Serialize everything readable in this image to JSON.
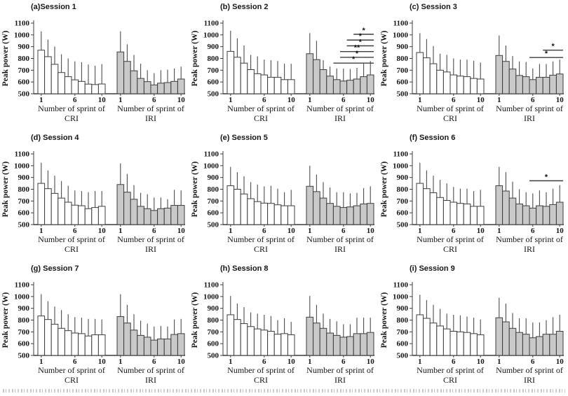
{
  "style": {
    "background": "#ffffff",
    "bar_fill_cri": "#ffffff",
    "bar_fill_iri": "#c9c9c9",
    "bar_stroke": "#3c3c3c",
    "error_bar_color": "#4c4c4c",
    "axis_color": "#3c3c3c",
    "text_color": "#161616"
  },
  "chart_data": [
    {
      "type": "bar",
      "id": "a",
      "title": "(a)Session 1",
      "ylabel": "Peak power (W)",
      "ylim": [
        500,
        1100
      ],
      "yticks": [
        500,
        600,
        700,
        800,
        900,
        1000,
        1100
      ],
      "xtick_labels": [
        1,
        6,
        10
      ],
      "xlabel_prefix": "Number of sprint of",
      "groups": [
        {
          "name": "CRI",
          "fill": "#ffffff",
          "values": [
            870,
            815,
            750,
            680,
            645,
            618,
            605,
            582,
            578,
            583
          ],
          "error_top": [
            1030,
            960,
            900,
            835,
            800,
            775,
            768,
            748,
            738,
            752
          ]
        },
        {
          "name": "IRI",
          "fill": "#c9c9c9",
          "values": [
            855,
            775,
            695,
            630,
            603,
            575,
            590,
            595,
            605,
            625
          ],
          "error_top": [
            1030,
            920,
            830,
            755,
            700,
            675,
            700,
            705,
            715,
            730
          ]
        }
      ],
      "significance": []
    },
    {
      "type": "bar",
      "id": "b",
      "title": "(b) Session 2",
      "ylabel": "Peak power (W)",
      "ylim": [
        500,
        1100
      ],
      "yticks": [
        500,
        600,
        700,
        800,
        900,
        1000,
        1100
      ],
      "xtick_labels": [
        1,
        6,
        10
      ],
      "xlabel_prefix": "Number of sprint of",
      "groups": [
        {
          "name": "CRI",
          "fill": "#ffffff",
          "values": [
            860,
            810,
            760,
            705,
            670,
            660,
            640,
            640,
            620,
            620
          ],
          "error_top": [
            1035,
            970,
            910,
            830,
            818,
            790,
            785,
            778,
            755,
            755
          ]
        },
        {
          "name": "IRI",
          "fill": "#c9c9c9",
          "values": [
            840,
            790,
            705,
            650,
            620,
            608,
            615,
            625,
            645,
            660
          ],
          "error_top": [
            1015,
            950,
            785,
            730,
            715,
            713,
            710,
            720,
            755,
            778
          ]
        }
      ],
      "significance": [
        {
          "group": "IRI",
          "from": 8,
          "to": 10,
          "y": 1005,
          "label": "*"
        },
        {
          "group": "IRI",
          "from": 7,
          "to": 10,
          "y": 956,
          "label": "*"
        },
        {
          "group": "IRI",
          "from": 7,
          "to": 10,
          "y": 907,
          "label": "*"
        },
        {
          "group": "IRI",
          "from": 6,
          "to": 10,
          "y": 858,
          "label": "**"
        },
        {
          "group": "IRI",
          "from": 6,
          "to": 10,
          "y": 809,
          "label": "*"
        },
        {
          "group": "IRI",
          "from": 5,
          "to": 10,
          "y": 760,
          "label": "*"
        }
      ]
    },
    {
      "type": "bar",
      "id": "c",
      "title": "(c) Session 3",
      "ylabel": "Peak power (W)",
      "ylim": [
        500,
        1100
      ],
      "yticks": [
        500,
        600,
        700,
        800,
        900,
        1000,
        1100
      ],
      "xtick_labels": [
        1,
        6,
        10
      ],
      "xlabel_prefix": "Number of sprint of",
      "groups": [
        {
          "name": "CRI",
          "fill": "#ffffff",
          "values": [
            850,
            805,
            755,
            700,
            685,
            660,
            650,
            645,
            630,
            625
          ],
          "error_top": [
            1015,
            965,
            905,
            840,
            830,
            800,
            790,
            790,
            780,
            765
          ]
        },
        {
          "name": "IRI",
          "fill": "#c9c9c9",
          "values": [
            825,
            775,
            710,
            655,
            645,
            620,
            640,
            640,
            658,
            668
          ],
          "error_top": [
            995,
            910,
            820,
            775,
            770,
            715,
            753,
            753,
            775,
            790
          ]
        }
      ],
      "significance": [
        {
          "group": "IRI",
          "from": 8,
          "to": 10,
          "y": 870,
          "label": "*"
        },
        {
          "group": "IRI",
          "from": 6,
          "to": 10,
          "y": 808,
          "label": "*"
        }
      ]
    },
    {
      "type": "bar",
      "id": "d",
      "title": "(d) Session 4",
      "ylabel": "Peak power (W)",
      "ylim": [
        500,
        1100
      ],
      "yticks": [
        500,
        600,
        700,
        800,
        900,
        1000,
        1100
      ],
      "xtick_labels": [
        1,
        6,
        10
      ],
      "xlabel_prefix": "Number of sprint of",
      "groups": [
        {
          "name": "CRI",
          "fill": "#ffffff",
          "values": [
            850,
            805,
            765,
            725,
            690,
            665,
            660,
            635,
            645,
            655
          ],
          "error_top": [
            1025,
            960,
            915,
            870,
            830,
            790,
            785,
            775,
            785,
            785
          ]
        },
        {
          "name": "IRI",
          "fill": "#c9c9c9",
          "values": [
            840,
            775,
            715,
            655,
            635,
            620,
            635,
            640,
            663,
            663
          ],
          "error_top": [
            1020,
            930,
            835,
            770,
            758,
            730,
            730,
            715,
            795,
            790
          ]
        }
      ],
      "significance": []
    },
    {
      "type": "bar",
      "id": "e",
      "title": "(e) Session 5",
      "ylabel": "Peak power (W)",
      "ylim": [
        500,
        1100
      ],
      "yticks": [
        500,
        600,
        700,
        800,
        900,
        1000,
        1100
      ],
      "xtick_labels": [
        1,
        6,
        10
      ],
      "xlabel_prefix": "Number of sprint of",
      "groups": [
        {
          "name": "CRI",
          "fill": "#ffffff",
          "values": [
            830,
            800,
            760,
            720,
            695,
            682,
            680,
            668,
            660,
            660
          ],
          "error_top": [
            990,
            945,
            910,
            860,
            840,
            825,
            830,
            805,
            775,
            795
          ]
        },
        {
          "name": "IRI",
          "fill": "#c9c9c9",
          "values": [
            825,
            780,
            725,
            680,
            655,
            645,
            650,
            660,
            675,
            680
          ],
          "error_top": [
            1000,
            925,
            860,
            815,
            775,
            775,
            765,
            770,
            810,
            825
          ]
        }
      ],
      "significance": []
    },
    {
      "type": "bar",
      "id": "f",
      "title": "(f) Session 6",
      "ylabel": "Peak power (W)",
      "ylim": [
        500,
        1100
      ],
      "yticks": [
        500,
        600,
        700,
        800,
        900,
        1000,
        1100
      ],
      "xtick_labels": [
        1,
        6,
        10
      ],
      "xlabel_prefix": "Number of sprint of",
      "groups": [
        {
          "name": "CRI",
          "fill": "#ffffff",
          "values": [
            850,
            805,
            770,
            730,
            705,
            690,
            680,
            675,
            655,
            655
          ],
          "error_top": [
            1025,
            960,
            915,
            880,
            850,
            820,
            805,
            805,
            785,
            795
          ]
        },
        {
          "name": "IRI",
          "fill": "#c9c9c9",
          "values": [
            830,
            785,
            725,
            675,
            660,
            640,
            660,
            655,
            670,
            690
          ],
          "error_top": [
            990,
            945,
            865,
            800,
            775,
            765,
            790,
            775,
            805,
            835
          ]
        }
      ],
      "significance": [
        {
          "group": "IRI",
          "from": 6,
          "to": 10,
          "y": 872,
          "label": "*"
        }
      ]
    },
    {
      "type": "bar",
      "id": "g",
      "title": "(g) Session 7",
      "ylabel": "Peak power (W)",
      "ylim": [
        500,
        1100
      ],
      "yticks": [
        500,
        600,
        700,
        800,
        900,
        1000,
        1100
      ],
      "xtick_labels": [
        1,
        6,
        10
      ],
      "xlabel_prefix": "Number of sprint of",
      "groups": [
        {
          "name": "CRI",
          "fill": "#ffffff",
          "values": [
            835,
            805,
            765,
            730,
            710,
            690,
            685,
            665,
            675,
            675
          ],
          "error_top": [
            1020,
            960,
            915,
            885,
            850,
            825,
            820,
            810,
            810,
            805
          ]
        },
        {
          "name": "IRI",
          "fill": "#c9c9c9",
          "values": [
            830,
            775,
            715,
            670,
            655,
            630,
            640,
            640,
            678,
            685
          ],
          "error_top": [
            1020,
            930,
            850,
            795,
            770,
            745,
            750,
            745,
            805,
            810
          ]
        }
      ],
      "significance": []
    },
    {
      "type": "bar",
      "id": "h",
      "title": "(h) Session 8",
      "ylabel": "Peak power (W)",
      "ylim": [
        500,
        1100
      ],
      "yticks": [
        500,
        600,
        700,
        800,
        900,
        1000,
        1100
      ],
      "xtick_labels": [
        1,
        6,
        10
      ],
      "xlabel_prefix": "Number of sprint of",
      "groups": [
        {
          "name": "CRI",
          "fill": "#ffffff",
          "values": [
            845,
            805,
            770,
            745,
            725,
            715,
            705,
            680,
            685,
            675
          ],
          "error_top": [
            1005,
            940,
            910,
            865,
            855,
            845,
            835,
            800,
            815,
            785
          ]
        },
        {
          "name": "IRI",
          "fill": "#c9c9c9",
          "values": [
            825,
            775,
            730,
            690,
            670,
            655,
            660,
            685,
            685,
            695
          ],
          "error_top": [
            1005,
            930,
            855,
            810,
            790,
            765,
            765,
            820,
            820,
            820
          ]
        }
      ],
      "significance": []
    },
    {
      "type": "bar",
      "id": "i",
      "title": "(i) Session 9",
      "ylabel": "Peak power (W)",
      "ylim": [
        500,
        1100
      ],
      "yticks": [
        500,
        600,
        700,
        800,
        900,
        1000,
        1100
      ],
      "xtick_labels": [
        1,
        6,
        10
      ],
      "xlabel_prefix": "Number of sprint of",
      "groups": [
        {
          "name": "CRI",
          "fill": "#ffffff",
          "values": [
            845,
            815,
            775,
            750,
            725,
            705,
            700,
            695,
            685,
            675
          ],
          "error_top": [
            1015,
            970,
            930,
            895,
            855,
            845,
            840,
            830,
            820,
            805
          ]
        },
        {
          "name": "IRI",
          "fill": "#c9c9c9",
          "values": [
            820,
            785,
            730,
            695,
            680,
            650,
            660,
            680,
            680,
            705
          ],
          "error_top": [
            990,
            940,
            860,
            815,
            815,
            780,
            780,
            800,
            825,
            845
          ]
        }
      ],
      "significance": []
    }
  ]
}
